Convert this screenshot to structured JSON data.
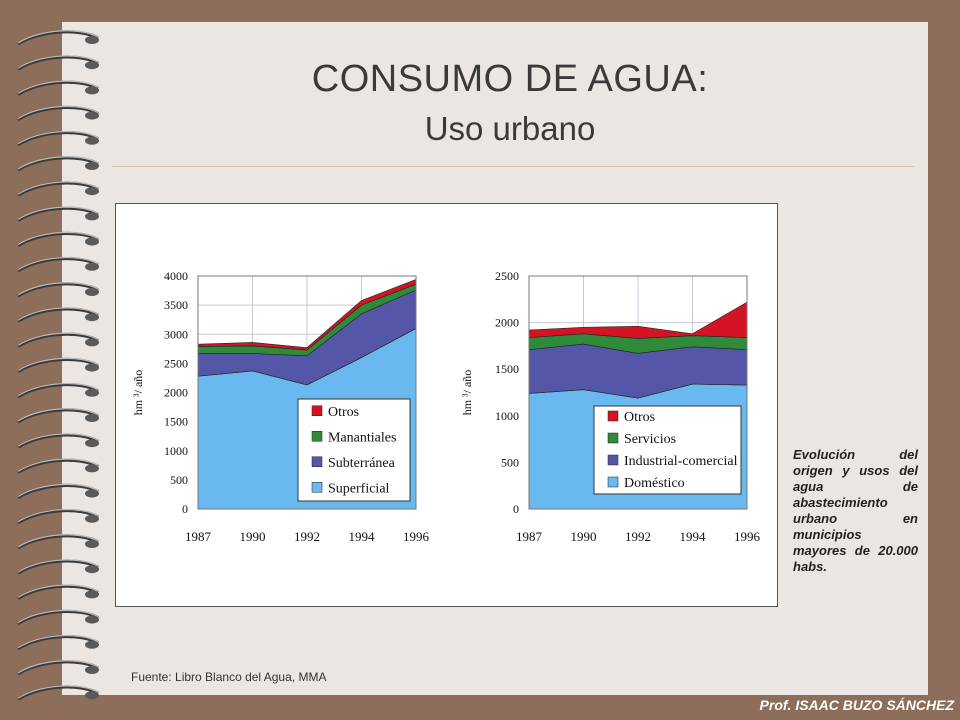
{
  "slide": {
    "title": "CONSUMO DE AGUA:",
    "subtitle": "Uso urbano",
    "description": "Evolución del origen y usos del agua de abastecimiento urbano en municipios mayores de 20.000 habs.",
    "source": "Fuente: Libro Blanco del Agua, MMA",
    "footer": "Prof. ISAAC BUZO SÁNCHEZ"
  },
  "colors": {
    "background": "#8d6e5a",
    "paper": "#ece6e2"
  },
  "chart_data": [
    {
      "type": "area",
      "stacked": true,
      "xlabel": "",
      "ylabel": "hm ³/ año",
      "x": [
        "1987",
        "1990",
        "1992",
        "1994",
        "1996"
      ],
      "ylim": [
        0,
        4000
      ],
      "yticks": [
        0,
        500,
        1000,
        1500,
        2000,
        2500,
        3000,
        3500,
        4000
      ],
      "grid": true,
      "legend": "bottom-right",
      "series": [
        {
          "name": "Superficial",
          "color": "#6ab8f0",
          "values": [
            2280,
            2370,
            2130,
            2600,
            3100
          ]
        },
        {
          "name": "Subterránea",
          "color": "#5456a8",
          "values": [
            390,
            300,
            500,
            750,
            660
          ]
        },
        {
          "name": "Manantiales",
          "color": "#2f8a3a",
          "values": [
            120,
            130,
            100,
            150,
            100
          ]
        },
        {
          "name": "Otros",
          "color": "#d41324",
          "values": [
            40,
            60,
            40,
            80,
            80
          ]
        }
      ]
    },
    {
      "type": "area",
      "stacked": true,
      "xlabel": "",
      "ylabel": "hm ³/ año",
      "x": [
        "1987",
        "1990",
        "1992",
        "1994",
        "1996"
      ],
      "ylim": [
        0,
        2500
      ],
      "yticks": [
        0,
        500,
        1000,
        1500,
        2000,
        2500
      ],
      "grid": true,
      "legend": "bottom-right",
      "series": [
        {
          "name": "Doméstico",
          "color": "#6ab8f0",
          "values": [
            1240,
            1280,
            1190,
            1340,
            1330
          ]
        },
        {
          "name": "Industrial-comercial",
          "color": "#5456a8",
          "values": [
            470,
            490,
            480,
            400,
            380
          ]
        },
        {
          "name": "Servicios",
          "color": "#2f8a3a",
          "values": [
            130,
            110,
            160,
            120,
            130
          ]
        },
        {
          "name": "Otros",
          "color": "#d41324",
          "values": [
            80,
            70,
            130,
            20,
            380
          ]
        }
      ]
    }
  ]
}
